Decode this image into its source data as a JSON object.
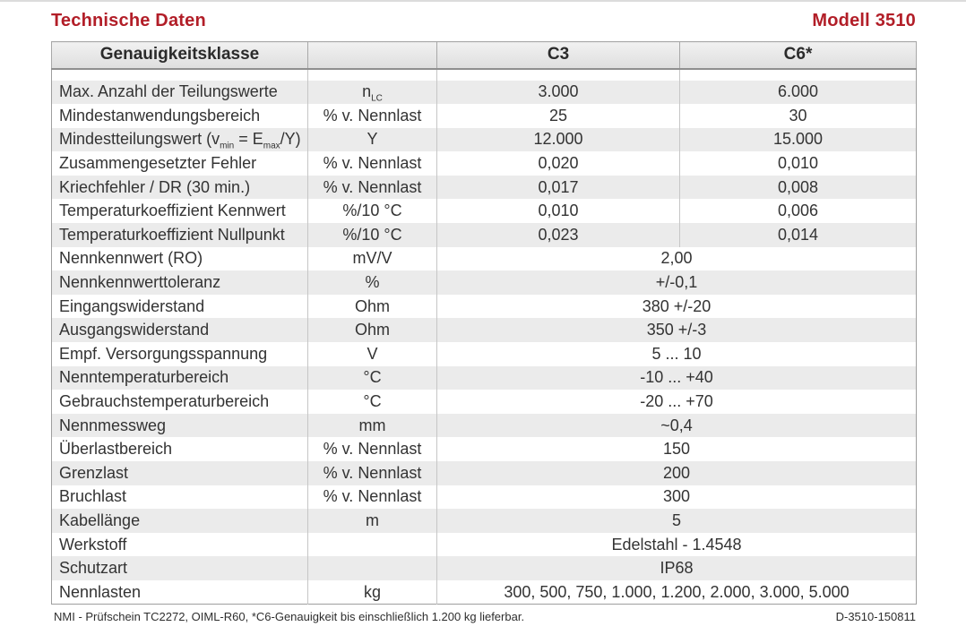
{
  "page": {
    "title": "Technische Daten",
    "model": "Modell 3510",
    "accent_color": "#b21e28",
    "footer_left": "NMI - Prüfschein TC2272, OIML-R60, *C6-Genauigkeit bis einschließlich 1.200 kg lieferbar.",
    "footer_right": "D-3510-150811"
  },
  "table": {
    "header": {
      "class_label": "Genauigkeitsklasse",
      "unit_label": "",
      "c3": "C3",
      "c6": "C6*"
    },
    "rows": [
      {
        "label": "Max. Anzahl der Teilungswerte",
        "unit_main": "n",
        "unit_sub": "LC",
        "c3": "3.000",
        "c6": "6.000"
      },
      {
        "label": "Mindestanwendungsbereich",
        "unit": "% v. Nennlast",
        "c3": "25",
        "c6": "30"
      },
      {
        "label_parts": {
          "p1": "Mindestteilungswert (v",
          "s1": "min",
          "p2": " = E",
          "s2": "max",
          "p3": "/Y)"
        },
        "unit": "Y",
        "c3": "12.000",
        "c6": "15.000"
      },
      {
        "label": "Zusammengesetzter Fehler",
        "unit": "% v. Nennlast",
        "c3": "0,020",
        "c6": "0,010"
      },
      {
        "label": "Kriechfehler / DR (30 min.)",
        "unit": "% v. Nennlast",
        "c3": "0,017",
        "c6": "0,008"
      },
      {
        "label": "Temperaturkoeffizient Kennwert",
        "unit": "%/10 °C",
        "c3": "0,010",
        "c6": "0,006"
      },
      {
        "label": "Temperaturkoeffizient Nullpunkt",
        "unit": "%/10 °C",
        "c3": "0,023",
        "c6": "0,014"
      },
      {
        "label": "Nennkennwert (RO)",
        "unit": "mV/V",
        "value": "2,00"
      },
      {
        "label": "Nennkennwerttoleranz",
        "unit": "%",
        "value": "+/-0,1"
      },
      {
        "label": "Eingangswiderstand",
        "unit": "Ohm",
        "value": "380 +/-20"
      },
      {
        "label": "Ausgangswiderstand",
        "unit": "Ohm",
        "value": "350 +/-3"
      },
      {
        "label": "Empf. Versorgungsspannung",
        "unit": "V",
        "value": "5 ... 10"
      },
      {
        "label": "Nenntemperaturbereich",
        "unit": "°C",
        "value": "-10 ... +40"
      },
      {
        "label": "Gebrauchstemperaturbereich",
        "unit": "°C",
        "value": "-20 ... +70"
      },
      {
        "label": "Nennmessweg",
        "unit": "mm",
        "value": "~0,4"
      },
      {
        "label": "Überlastbereich",
        "unit": "% v. Nennlast",
        "value": "150"
      },
      {
        "label": "Grenzlast",
        "unit": "% v. Nennlast",
        "value": "200"
      },
      {
        "label": "Bruchlast",
        "unit": "% v. Nennlast",
        "value": "300"
      },
      {
        "label": "Kabellänge",
        "unit": "m",
        "value": "5"
      },
      {
        "label": "Werkstoff",
        "unit": "",
        "value": "Edelstahl - 1.4548"
      },
      {
        "label": "Schutzart",
        "unit": "",
        "value": "IP68"
      },
      {
        "label": "Nennlasten",
        "unit": "kg",
        "value": "300, 500, 750, 1.000, 1.200, 2.000, 3.000, 5.000"
      }
    ]
  }
}
